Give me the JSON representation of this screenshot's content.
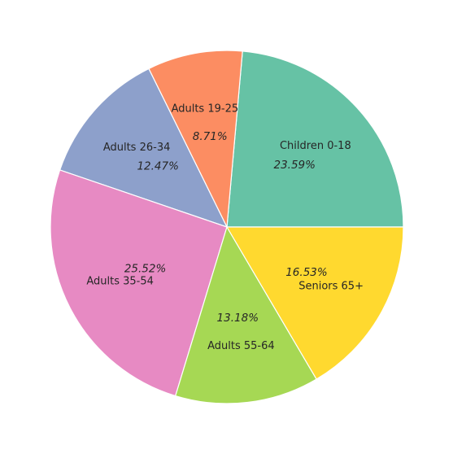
{
  "chart_data": {
    "type": "pie",
    "categories": [
      "Children 0-18",
      "Adults 19-25",
      "Adults 26-34",
      "Adults 35-54",
      "Adults 55-64",
      "Seniors 65+"
    ],
    "values": [
      23.59,
      8.71,
      12.47,
      25.52,
      13.18,
      16.53
    ],
    "percent_labels": [
      "23.59%",
      "8.71%",
      "12.47%",
      "25.52%",
      "13.18%",
      "16.53%"
    ],
    "colors": [
      "#66c2a5",
      "#fc8d62",
      "#8da0cb",
      "#e78ac3",
      "#a6d854",
      "#ffd92f"
    ],
    "start_angle_deg": 0,
    "direction": "counterclockwise"
  }
}
